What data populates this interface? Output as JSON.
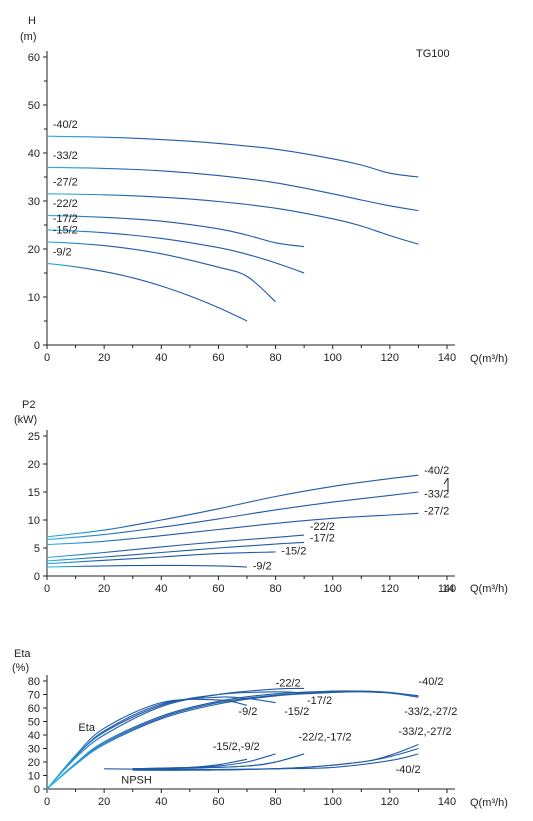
{
  "colors": {
    "curve": "#1f5aa8",
    "curve_start": "#29b6e8",
    "axis": "#222222"
  },
  "chart_data": [
    {
      "type": "line",
      "ylabel": "H",
      "yunit": "(m)",
      "xunit_label": "Q(m³/h)",
      "annotation": "TG100",
      "xlim": [
        0,
        140
      ],
      "ylim": [
        0,
        60
      ],
      "x_ticks": [
        "0",
        "20",
        "40",
        "60",
        "80",
        "100",
        "120",
        "140"
      ],
      "y_ticks": [
        "0",
        "10",
        "20",
        "30",
        "40",
        "50",
        "60"
      ],
      "series": [
        {
          "name": "-40/2",
          "x": [
            0,
            20,
            40,
            60,
            80,
            100,
            110,
            120,
            130
          ],
          "y": [
            43.5,
            43.3,
            42.8,
            42.0,
            40.8,
            38.8,
            37.5,
            35.8,
            35.0
          ]
        },
        {
          "name": "-33/2",
          "x": [
            0,
            20,
            40,
            60,
            80,
            100,
            110,
            120,
            130
          ],
          "y": [
            37.0,
            36.8,
            36.3,
            35.3,
            33.8,
            31.5,
            30.2,
            29.0,
            28.0
          ]
        },
        {
          "name": "-27/2",
          "x": [
            0,
            20,
            40,
            60,
            80,
            100,
            110,
            120,
            130
          ],
          "y": [
            31.5,
            31.3,
            30.8,
            29.9,
            28.5,
            26.3,
            24.8,
            22.8,
            21.0
          ]
        },
        {
          "name": "-22/2",
          "x": [
            0,
            20,
            40,
            60,
            70,
            80,
            90
          ],
          "y": [
            27.0,
            26.6,
            25.8,
            24.2,
            22.9,
            21.3,
            20.5
          ]
        },
        {
          "name": "-17/2",
          "x": [
            0,
            20,
            40,
            60,
            70,
            80,
            90
          ],
          "y": [
            24.0,
            23.4,
            22.2,
            20.3,
            18.9,
            17.1,
            15.0
          ]
        },
        {
          "name": "-15/2",
          "x": [
            0,
            20,
            40,
            60,
            70,
            80
          ],
          "y": [
            21.5,
            20.7,
            19.0,
            16.2,
            14.3,
            9.0
          ]
        },
        {
          "name": "-9/2",
          "x": [
            0,
            10,
            20,
            30,
            40,
            50,
            60,
            70
          ],
          "y": [
            17.0,
            16.3,
            15.3,
            14.0,
            12.3,
            10.2,
            7.8,
            5.0
          ]
        }
      ],
      "labels": [
        {
          "text": "-40/2",
          "x": 2,
          "y": 45.2
        },
        {
          "text": "-33/2",
          "x": 2,
          "y": 38.7
        },
        {
          "text": "-27/2",
          "x": 2,
          "y": 33.2
        },
        {
          "text": "-22/2",
          "x": 2,
          "y": 28.7
        },
        {
          "text": "-17/2",
          "x": 2,
          "y": 25.6
        },
        {
          "text": "-15/2",
          "x": 2,
          "y": 23.2
        },
        {
          "text": "-9/2",
          "x": 2,
          "y": 18.6
        }
      ]
    },
    {
      "type": "line",
      "ylabel": "P2",
      "yunit": "(kW)",
      "xunit_label": "Q(m³/h)",
      "xlim": [
        0,
        140
      ],
      "ylim": [
        0,
        25
      ],
      "x_ticks": [
        "0",
        "20",
        "40",
        "60",
        "80",
        "100",
        "120",
        "140"
      ],
      "y_ticks": [
        "0",
        "5",
        "10",
        "15",
        "20",
        "25"
      ],
      "series": [
        {
          "name": "-40/2",
          "x": [
            0,
            20,
            40,
            60,
            80,
            100,
            120,
            130
          ],
          "y": [
            7.0,
            8.2,
            10.0,
            12.0,
            14.2,
            16.0,
            17.4,
            18.0
          ]
        },
        {
          "name": "-33/2",
          "x": [
            0,
            20,
            40,
            60,
            80,
            100,
            120,
            130
          ],
          "y": [
            6.5,
            7.4,
            8.7,
            10.2,
            11.8,
            13.2,
            14.4,
            15.0
          ]
        },
        {
          "name": "-27/2",
          "x": [
            0,
            20,
            40,
            60,
            80,
            100,
            120,
            130
          ],
          "y": [
            5.6,
            6.2,
            7.2,
            8.3,
            9.4,
            10.3,
            10.9,
            11.2
          ]
        },
        {
          "name": "-22/2",
          "x": [
            0,
            20,
            40,
            60,
            80,
            90
          ],
          "y": [
            3.3,
            4.2,
            5.2,
            6.1,
            6.9,
            7.3
          ]
        },
        {
          "name": "-17/2",
          "x": [
            0,
            20,
            40,
            60,
            80,
            90
          ],
          "y": [
            2.7,
            3.4,
            4.2,
            5.0,
            5.7,
            6.0
          ]
        },
        {
          "name": "-15/2",
          "x": [
            0,
            20,
            40,
            60,
            80
          ],
          "y": [
            2.2,
            2.8,
            3.4,
            4.0,
            4.3
          ]
        },
        {
          "name": "-9/2",
          "x": [
            0,
            20,
            40,
            60,
            70
          ],
          "y": [
            1.6,
            1.8,
            1.9,
            1.8,
            1.6
          ]
        }
      ],
      "labels": [
        {
          "text": "-40/2",
          "x": 132,
          "y": 18.2
        },
        {
          "text": "-33/2",
          "x": 132,
          "y": 14.0
        },
        {
          "text": "-27/2",
          "x": 132,
          "y": 11.0
        },
        {
          "text": "-22/2",
          "x": 92,
          "y": 8.2
        },
        {
          "text": "-17/2",
          "x": 92,
          "y": 6.2
        },
        {
          "text": "-15/2",
          "x": 82,
          "y": 3.8
        },
        {
          "text": "-9/2",
          "x": 72,
          "y": 1.2
        }
      ],
      "stray_tick_label": "14"
    },
    {
      "type": "line",
      "ylabel": "Eta",
      "yunit": "(%)",
      "xunit_label": "Q(m³/h)",
      "xlim": [
        0,
        140
      ],
      "ylim": [
        0,
        80
      ],
      "x_ticks": [
        "0",
        "20",
        "40",
        "60",
        "80",
        "100",
        "120",
        "140"
      ],
      "y_ticks": [
        "0",
        "10",
        "20",
        "30",
        "40",
        "50",
        "60",
        "70",
        "80"
      ],
      "eta_series": [
        {
          "name": "-40/2",
          "x": [
            0,
            10,
            20,
            40,
            60,
            80,
            100,
            110,
            120,
            130
          ],
          "y": [
            0,
            18,
            33,
            52,
            63,
            69,
            71.5,
            72,
            71,
            68
          ]
        },
        {
          "name": "-33/2",
          "x": [
            0,
            10,
            20,
            40,
            60,
            80,
            100,
            110,
            120,
            130
          ],
          "y": [
            0,
            18.5,
            34,
            53,
            64,
            69.5,
            72,
            72.5,
            71.5,
            69
          ]
        },
        {
          "name": "-27/2",
          "x": [
            0,
            10,
            20,
            40,
            60,
            80,
            100,
            110,
            120,
            130
          ],
          "y": [
            0,
            19,
            35,
            54,
            65,
            70.5,
            72.5,
            72.5,
            71.5,
            69
          ]
        },
        {
          "name": "-22/2",
          "x": [
            0,
            10,
            20,
            40,
            60,
            80,
            90
          ],
          "y": [
            0,
            23,
            40,
            61,
            70,
            74,
            74.5
          ]
        },
        {
          "name": "-17/2",
          "x": [
            0,
            10,
            20,
            40,
            60,
            80,
            90
          ],
          "y": [
            0,
            24,
            42,
            62,
            70,
            72,
            71
          ]
        },
        {
          "name": "-15/2",
          "x": [
            0,
            10,
            20,
            40,
            60,
            70,
            80
          ],
          "y": [
            0,
            24,
            43,
            63,
            68,
            67,
            64
          ]
        },
        {
          "name": "-9/2",
          "x": [
            0,
            10,
            20,
            40,
            60,
            70
          ],
          "y": [
            0,
            25,
            45,
            64,
            66,
            62
          ]
        }
      ],
      "npsh_series": [
        {
          "name": "-40/2",
          "x": [
            20,
            40,
            60,
            80,
            100,
            120,
            130
          ],
          "y": [
            15,
            14.5,
            14.5,
            15,
            16,
            21,
            26
          ]
        },
        {
          "name": "-33/2",
          "x": [
            30,
            50,
            70,
            90,
            110,
            120,
            130
          ],
          "y": [
            14,
            14,
            14.5,
            16,
            20,
            24,
            30
          ]
        },
        {
          "name": "-27/2",
          "x": [
            30,
            50,
            70,
            90,
            110,
            120,
            130
          ],
          "y": [
            14,
            14,
            14.5,
            16,
            20,
            25,
            33
          ]
        },
        {
          "name": "-22/2",
          "x": [
            30,
            50,
            70,
            80,
            90
          ],
          "y": [
            15,
            15.5,
            17,
            20,
            26
          ]
        },
        {
          "name": "-17/2",
          "x": [
            30,
            50,
            70,
            80,
            90
          ],
          "y": [
            15,
            15.5,
            17,
            20,
            26
          ]
        },
        {
          "name": "-15/2",
          "x": [
            30,
            50,
            60,
            70,
            80
          ],
          "y": [
            15,
            16,
            17,
            20,
            26
          ]
        },
        {
          "name": "-9/2",
          "x": [
            30,
            50,
            60,
            70
          ],
          "y": [
            15,
            16,
            18,
            22
          ]
        }
      ],
      "labels": [
        {
          "text": "-22/2",
          "x": 80,
          "y": 76
        },
        {
          "text": "-40/2",
          "x": 130,
          "y": 77
        },
        {
          "text": "-17/2",
          "x": 91,
          "y": 63
        },
        {
          "text": "-9/2",
          "x": 67,
          "y": 55
        },
        {
          "text": "-15/2",
          "x": 83,
          "y": 55
        },
        {
          "text": "-33/2,-27/2",
          "x": 125,
          "y": 55
        },
        {
          "text": "Eta",
          "x": 11,
          "y": 43
        },
        {
          "text": "-15/2,-9/2",
          "x": 58,
          "y": 29
        },
        {
          "text": "-22/2,-17/2",
          "x": 88,
          "y": 36
        },
        {
          "text": "-33/2,-27/2",
          "x": 123,
          "y": 40
        },
        {
          "text": "NPSH",
          "x": 26,
          "y": 4
        },
        {
          "text": "-40/2",
          "x": 122,
          "y": 12
        }
      ]
    }
  ]
}
